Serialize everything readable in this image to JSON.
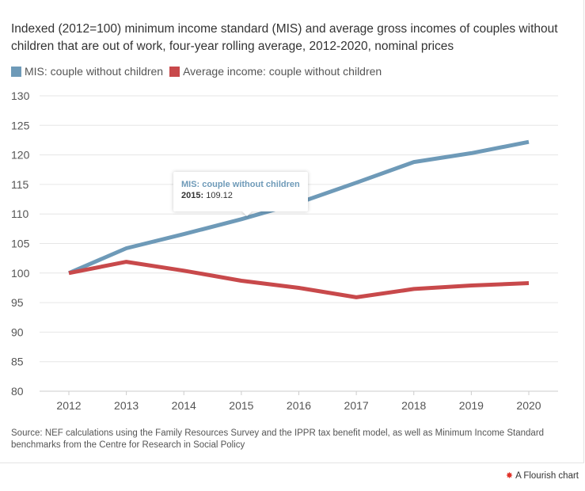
{
  "title": "Indexed (2012=100) minimum income standard (MIS) and average gross incomes of couples without children that are out of work, four-year rolling average, 2012-2020, nominal prices",
  "legend": [
    {
      "label": "MIS: couple without children",
      "color": "#6e9ab8"
    },
    {
      "label": "Average income: couple without children",
      "color": "#c8494b"
    }
  ],
  "tooltip": {
    "series": "MIS: couple without children",
    "year_label": "2015:",
    "value_text": "109.12"
  },
  "source": "Source: NEF calculations using the Family Resources Survey and the IPPR tax benefit model, as well as Minimum Income Standard benchmarks from the Centre for Research in Social Policy",
  "credit": {
    "icon": "flourish-icon",
    "text": "A Flourish chart"
  },
  "chart_data": {
    "type": "line",
    "title": "Indexed (2012=100) minimum income standard (MIS) and average gross incomes of couples without children that are out of work, four-year rolling average, 2012-2020, nominal prices",
    "x": [
      2012,
      2013,
      2014,
      2015,
      2016,
      2017,
      2018,
      2019,
      2020
    ],
    "x_tick_labels": [
      "2012",
      "2013",
      "2014",
      "2015",
      "2016",
      "2017",
      "2018",
      "2019",
      "2020"
    ],
    "ylim": [
      80,
      130
    ],
    "y_ticks": [
      80,
      85,
      90,
      95,
      100,
      105,
      110,
      115,
      120,
      125,
      130
    ],
    "grid": true,
    "xlabel": "",
    "ylabel": "",
    "series": [
      {
        "name": "MIS: couple without children",
        "color": "#6e9ab8",
        "values": [
          100,
          104.2,
          106.6,
          109.12,
          111.9,
          115.3,
          118.8,
          120.3,
          122.2
        ]
      },
      {
        "name": "Average income: couple without children",
        "color": "#c8494b",
        "values": [
          100,
          101.9,
          100.4,
          98.7,
          97.5,
          95.9,
          97.3,
          97.9,
          98.3
        ]
      }
    ]
  }
}
